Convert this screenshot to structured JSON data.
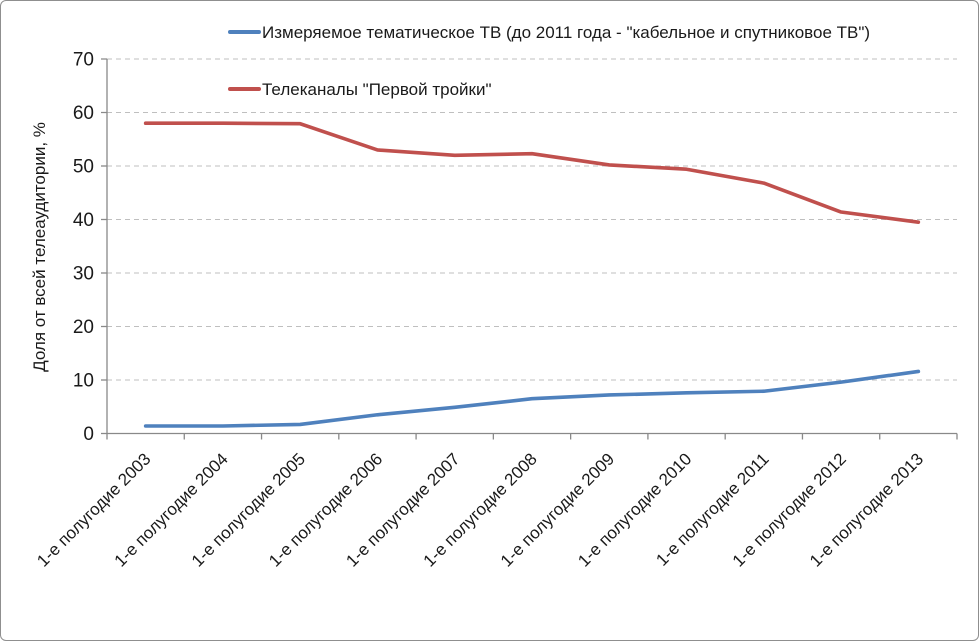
{
  "chart_data": {
    "type": "line",
    "title": "",
    "xlabel": "",
    "ylabel": "Доля от всей телеаудитории, %",
    "ylim": [
      0,
      70
    ],
    "ytick_step": 10,
    "yticks": [
      0,
      10,
      20,
      30,
      40,
      50,
      60,
      70
    ],
    "grid": "horizontal-dashed",
    "legend_position": "top-inside",
    "categories": [
      "1-е полугодие 2003",
      "1-е полугодие 2004",
      "1-е полугодие 2005",
      "1-е полугодие 2006",
      "1-е полугодие 2007",
      "1-е полугодие 2008",
      "1-е полугодие 2009",
      "1-е полугодие 2010",
      "1-е полугодие 2011",
      "1-е полугодие 2012",
      "1-е полугодие 2013"
    ],
    "series": [
      {
        "name": "Измеряемое тематическое ТВ (до 2011 года - \"кабельное и спутниковое ТВ\")",
        "color": "#4F81BD",
        "values": [
          1.4,
          1.4,
          1.7,
          3.5,
          4.9,
          6.5,
          7.2,
          7.6,
          7.9,
          9.6,
          11.6
        ]
      },
      {
        "name": "Телеканалы \"Первой тройки\"",
        "color": "#C0504D",
        "values": [
          58.0,
          58.0,
          57.9,
          53.0,
          52.0,
          52.3,
          50.2,
          49.4,
          46.8,
          41.4,
          39.5
        ]
      }
    ]
  },
  "colors": {
    "gridline": "#BFBFBF",
    "axis": "#898989",
    "text": "#1a1a1a",
    "background": "#ffffff",
    "frame_border": "#8f8f8f"
  }
}
